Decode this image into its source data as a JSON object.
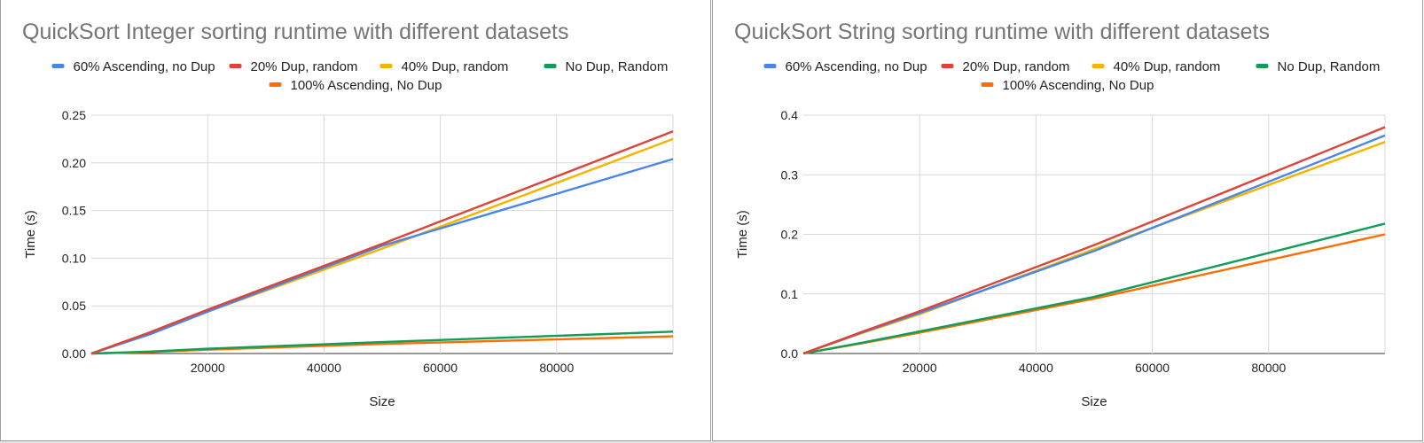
{
  "chart_data": [
    {
      "type": "line",
      "title": "QuickSort Integer sorting runtime with different datasets",
      "xlabel": "Size",
      "ylabel": "Time (s)",
      "xlim": [
        0,
        100000
      ],
      "ylim": [
        0,
        0.25
      ],
      "x_ticks": [
        20000,
        40000,
        60000,
        80000
      ],
      "y_ticks": [
        "0.00",
        "0.05",
        "0.10",
        "0.15",
        "0.20",
        "0.25"
      ],
      "grid": true,
      "legend_position": "top",
      "x": [
        0,
        10000,
        20000,
        50000,
        100000
      ],
      "series": [
        {
          "name": "60% Ascending, no Dup",
          "color": "#4a86e8",
          "values": [
            0,
            0.02,
            0.044,
            0.113,
            0.204
          ]
        },
        {
          "name": "20% Dup, random",
          "color": "#db4437",
          "values": [
            0,
            0.022,
            0.046,
            0.115,
            0.233
          ]
        },
        {
          "name": "40% Dup, random",
          "color": "#f4b400",
          "values": [
            0,
            0.021,
            0.044,
            0.11,
            0.225
          ]
        },
        {
          "name": "No Dup, Random",
          "color": "#0f9d58",
          "values": [
            0,
            0.002,
            0.005,
            0.012,
            0.023
          ]
        },
        {
          "name": "100% Ascending, No Dup",
          "color": "#ff6d01",
          "values": [
            0,
            0.0015,
            0.004,
            0.01,
            0.018
          ]
        }
      ]
    },
    {
      "type": "line",
      "title": "QuickSort String sorting runtime with different datasets",
      "xlabel": "Size",
      "ylabel": "Time (s)",
      "xlim": [
        0,
        100000
      ],
      "ylim": [
        0,
        0.4
      ],
      "x_ticks": [
        20000,
        40000,
        60000,
        80000
      ],
      "y_ticks": [
        "0.0",
        "0.1",
        "0.2",
        "0.3",
        "0.4"
      ],
      "grid": true,
      "legend_position": "top",
      "x": [
        0,
        10000,
        20000,
        50000,
        100000
      ],
      "series": [
        {
          "name": "60% Ascending, no Dup",
          "color": "#4a86e8",
          "values": [
            0,
            0.035,
            0.068,
            0.172,
            0.366
          ]
        },
        {
          "name": "20% Dup, random",
          "color": "#db4437",
          "values": [
            0,
            0.036,
            0.071,
            0.182,
            0.38
          ]
        },
        {
          "name": "40% Dup, random",
          "color": "#f4b400",
          "values": [
            0,
            0.034,
            0.066,
            0.175,
            0.355
          ]
        },
        {
          "name": "No Dup, Random",
          "color": "#0f9d58",
          "values": [
            0,
            0.018,
            0.037,
            0.095,
            0.218
          ]
        },
        {
          "name": "100% Ascending, No Dup",
          "color": "#ff6d01",
          "values": [
            0,
            0.017,
            0.035,
            0.092,
            0.2
          ]
        }
      ]
    }
  ]
}
